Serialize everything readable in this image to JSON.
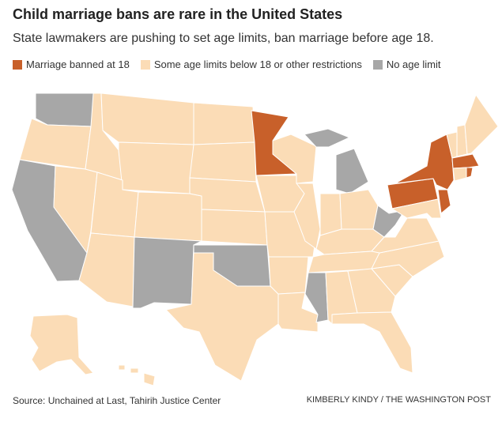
{
  "header": {
    "title": "Child marriage bans are rare in the United States",
    "subtitle": "State lawmakers are pushing to set age limits, ban marriage before age 18."
  },
  "legend": {
    "items": [
      {
        "label": "Marriage banned at 18",
        "color": "#c8602a"
      },
      {
        "label": "Some age limits below 18 or other restrictions",
        "color": "#fbdcb6"
      },
      {
        "label": "No age limit",
        "color": "#a7a7a7"
      }
    ]
  },
  "footer": {
    "source": "Source: Unchained at Last, Tahirih Justice Center",
    "credit": "KIMBERLY KINDY / THE WASHINGTON POST"
  }
}
